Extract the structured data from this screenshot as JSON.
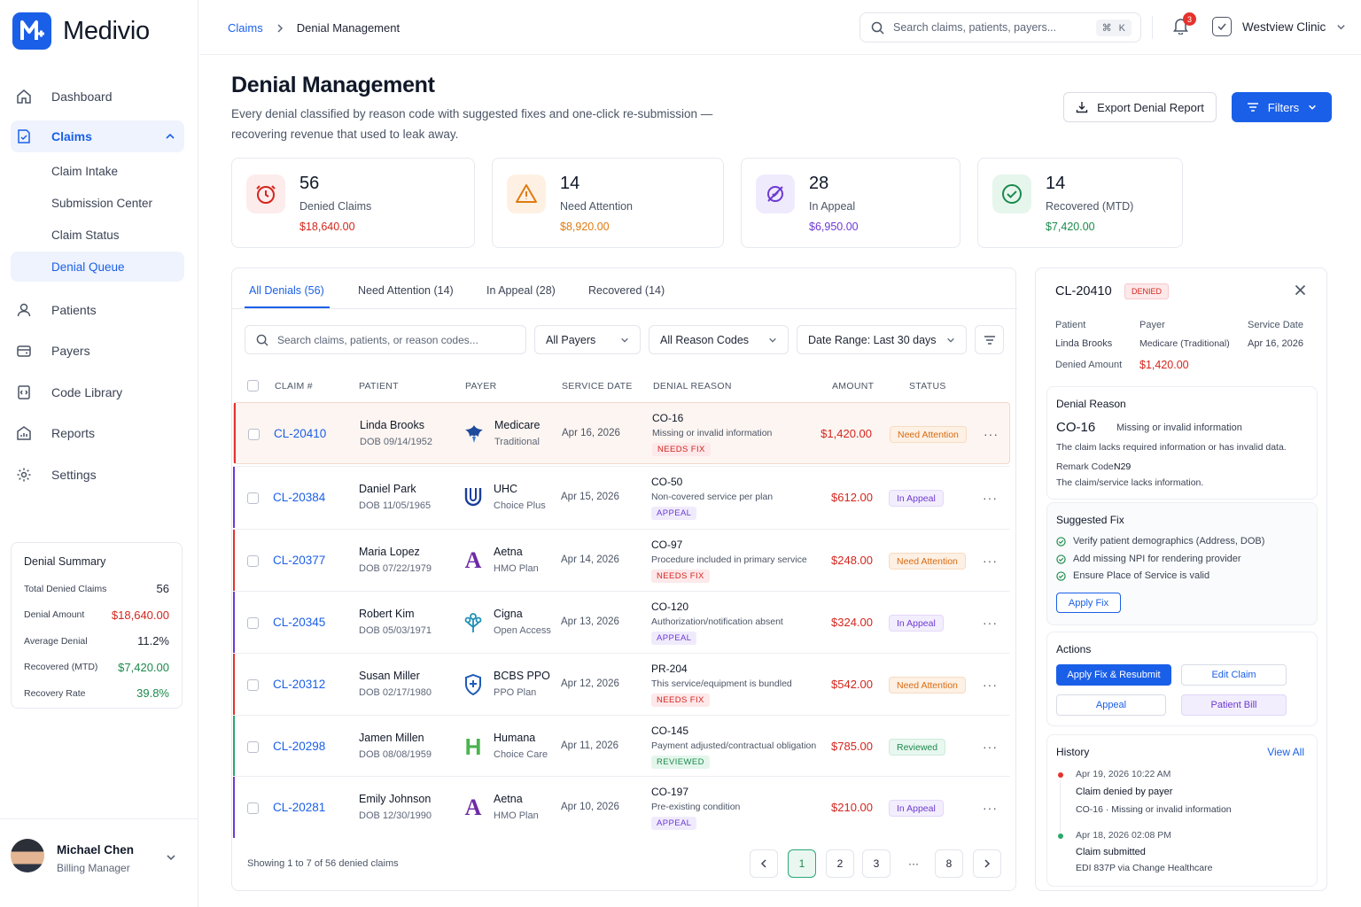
{
  "app": {
    "name": "Medivio"
  },
  "sidebar": {
    "nav": [
      {
        "label": "Dashboard",
        "icon": "home-icon"
      },
      {
        "label": "Claims",
        "icon": "claims-icon"
      },
      {
        "label": "Patients",
        "icon": "user-icon"
      },
      {
        "label": "Payers",
        "icon": "wallet-icon"
      },
      {
        "label": "Code Library",
        "icon": "code-book-icon"
      },
      {
        "label": "Reports",
        "icon": "reports-icon"
      },
      {
        "label": "Settings",
        "icon": "gear-icon"
      }
    ],
    "claims_sub": [
      "Claim Intake",
      "Submission Center",
      "Claim Status",
      "Denial Queue"
    ],
    "summary": {
      "title": "Denial Summary",
      "rows": [
        {
          "label": "Total Denied Claims",
          "value": "56"
        },
        {
          "label": "Denial Amount",
          "value": "$18,640.00"
        },
        {
          "label": "Average Denial",
          "value": "11.2%"
        },
        {
          "label": "Recovered (MTD)",
          "value": "$7,420.00"
        },
        {
          "label": "Recovery Rate",
          "value": "39.8%"
        }
      ]
    },
    "user": {
      "name": "Michael Chen",
      "role": "Billing Manager"
    }
  },
  "topbar": {
    "breadcrumb": [
      "Claims",
      "Denial Management"
    ],
    "search_placeholder": "Search claims, patients, payers...",
    "shortcut_cmd": "⌘",
    "shortcut_key": "K",
    "notifications": "3",
    "clinic": "Westview Clinic"
  },
  "header": {
    "title": "Denial Management",
    "subtitle": "Every denial classified by reason code with suggested fixes and one-click re-submission — recovering revenue that used to leak away.",
    "export_label": "Export Denial Report",
    "filters_label": "Filters"
  },
  "stats": [
    {
      "value": "56",
      "label": "Denied Claims",
      "amount": "$18,640.00",
      "color": "#d3261e",
      "icon": "clock-alert-icon"
    },
    {
      "value": "14",
      "label": "Need Attention",
      "amount": "$8,920.00",
      "color": "#e07b12",
      "icon": "warning-icon"
    },
    {
      "value": "28",
      "label": "In Appeal",
      "amount": "$6,950.00",
      "color": "#6d3ad4",
      "icon": "appeal-icon"
    },
    {
      "value": "14",
      "label": "Recovered (MTD)",
      "amount": "$7,420.00",
      "color": "#1b8a4c",
      "icon": "check-circle-icon"
    }
  ],
  "tabs": [
    "All Denials (56)",
    "Need Attention (14)",
    "In Appeal (28)",
    "Recovered (14)"
  ],
  "filters": {
    "search_placeholder": "Search claims, patients, or reason codes...",
    "payers": "All Payers",
    "reasons": "All Reason Codes",
    "date": "Date Range: Last 30 days"
  },
  "table": {
    "headers": [
      "CLAIM #",
      "PATIENT",
      "PAYER",
      "SERVICE DATE",
      "DENIAL REASON",
      "AMOUNT",
      "STATUS"
    ],
    "rows": [
      {
        "claim": "CL-20410",
        "patient": "Linda Brooks",
        "dob": "DOB 09/14/1952",
        "payer": "Medicare",
        "plan": "Traditional",
        "logo": "medicare-logo-icon",
        "date": "Apr 16, 2026",
        "code": "CO-16",
        "reason": "Missing or invalid information",
        "tag": "NEEDS FIX",
        "amount": "$1,420.00",
        "status": "Need Attention"
      },
      {
        "claim": "CL-20384",
        "patient": "Daniel Park",
        "dob": "DOB 11/05/1965",
        "payer": "UHC",
        "plan": "Choice Plus",
        "logo": "uhc-logo-icon",
        "date": "Apr 15, 2026",
        "code": "CO-50",
        "reason": "Non-covered service per plan",
        "tag": "APPEAL",
        "amount": "$612.00",
        "status": "In Appeal"
      },
      {
        "claim": "CL-20377",
        "patient": "Maria Lopez",
        "dob": "DOB 07/22/1979",
        "payer": "Aetna",
        "plan": "HMO Plan",
        "logo": "aetna-logo-icon",
        "date": "Apr 14, 2026",
        "code": "CO-97",
        "reason": "Procedure included in primary service",
        "tag": "NEEDS FIX",
        "amount": "$248.00",
        "status": "Need Attention"
      },
      {
        "claim": "CL-20345",
        "patient": "Robert Kim",
        "dob": "DOB 05/03/1971",
        "payer": "Cigna",
        "plan": "Open Access",
        "logo": "cigna-logo-icon",
        "date": "Apr 13, 2026",
        "code": "CO-120",
        "reason": "Authorization/notification absent",
        "tag": "APPEAL",
        "amount": "$324.00",
        "status": "In Appeal"
      },
      {
        "claim": "CL-20312",
        "patient": "Susan Miller",
        "dob": "DOB 02/17/1980",
        "payer": "BCBS PPO",
        "plan": "PPO Plan",
        "logo": "bcbs-logo-icon",
        "date": "Apr 12, 2026",
        "code": "PR-204",
        "reason": "This service/equipment is bundled",
        "tag": "NEEDS FIX",
        "amount": "$542.00",
        "status": "Need Attention"
      },
      {
        "claim": "CL-20298",
        "patient": "Jamen Millen",
        "dob": "DOB 08/08/1959",
        "payer": "Humana",
        "plan": "Choice Care",
        "logo": "humana-logo-icon",
        "date": "Apr 11, 2026",
        "code": "CO-145",
        "reason": "Payment adjusted/contractual obligation",
        "tag": "REVIEWED",
        "amount": "$785.00",
        "status": "Reviewed"
      },
      {
        "claim": "CL-20281",
        "patient": "Emily Johnson",
        "dob": "DOB 12/30/1990",
        "payer": "Aetna",
        "plan": "HMO Plan",
        "logo": "aetna-logo-icon",
        "date": "Apr 10, 2026",
        "code": "CO-197",
        "reason": "Pre-existing condition",
        "tag": "APPEAL",
        "amount": "$210.00",
        "status": "In Appeal"
      }
    ],
    "footer": "Showing 1 to 7 of 56 denied claims",
    "pages": [
      "1",
      "2",
      "3",
      "···",
      "8"
    ]
  },
  "detail": {
    "claim": "CL-20410",
    "badge": "DENIED",
    "patient_label": "Patient",
    "patient": "Linda Brooks",
    "payer_label": "Payer",
    "payer": "Medicare (Traditional)",
    "date_label": "Service Date",
    "date": "Apr 16, 2026",
    "amount_label": "Denied Amount",
    "amount": "$1,420.00",
    "reason": {
      "title": "Denial Reason",
      "code": "CO-16",
      "short": "Missing or invalid information",
      "desc": "The claim lacks required information or has invalid data.",
      "remark_label": "Remark Code:",
      "remark": "N29",
      "remark_desc": "The claim/service lacks information."
    },
    "fix": {
      "title": "Suggested Fix",
      "items": [
        "Verify patient demographics (Address, DOB)",
        "Add missing NPI for rendering provider",
        "Ensure Place of Service is valid"
      ],
      "button": "Apply Fix"
    },
    "actions": {
      "title": "Actions",
      "primary": "Apply Fix & Resubmit",
      "edit": "Edit Claim",
      "appeal": "Appeal",
      "bill": "Patient Bill"
    },
    "history": {
      "title": "History",
      "view_all": "View All",
      "events": [
        {
          "time": "Apr 19, 2026 10:22 AM",
          "title": "Claim denied by payer",
          "detail": "CO-16 · Missing or invalid information"
        },
        {
          "time": "Apr 18, 2026 02:08 PM",
          "title": "Claim submitted",
          "detail": "EDI 837P via Change Healthcare"
        }
      ]
    }
  }
}
